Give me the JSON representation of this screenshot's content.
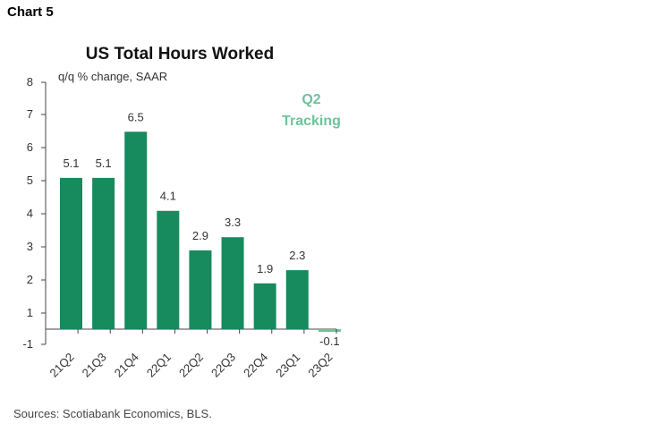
{
  "chart_label": "Chart 5",
  "source": "Sources: Scotiabank Economics, BLS.",
  "chart_data": {
    "type": "bar",
    "title": "US Total Hours Worked",
    "ylabel": "q/q % change, SAAR",
    "categories": [
      "21Q2",
      "21Q3",
      "21Q4",
      "22Q1",
      "22Q2",
      "22Q3",
      "22Q4",
      "23Q1",
      "23Q2"
    ],
    "values": [
      5.1,
      5.1,
      6.5,
      4.1,
      2.9,
      3.3,
      1.9,
      2.3,
      -0.1
    ],
    "data_labels": [
      "5.1",
      "5.1",
      "6.5",
      "4.1",
      "2.9",
      "3.3",
      "1.9",
      "2.3",
      "-0.1"
    ],
    "yticks": [
      "-1",
      "1",
      "2",
      "3",
      "4",
      "5",
      "6",
      "7",
      "8"
    ],
    "annotation": [
      "Q2",
      "Tracking"
    ],
    "colors": {
      "bar": "#178a5e",
      "tracking_bar": "#6cc49a",
      "annotation": "#6cc49a"
    },
    "grid": false,
    "legend": "none"
  }
}
